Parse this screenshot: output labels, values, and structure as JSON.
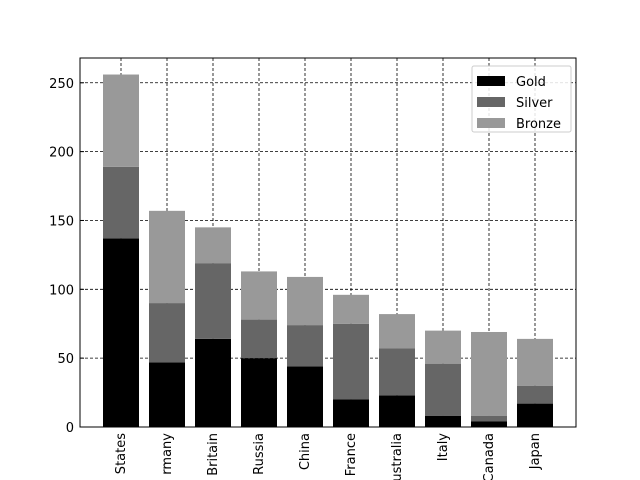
{
  "chart_data": {
    "type": "bar",
    "stacked": true,
    "title": "",
    "xlabel": "",
    "ylabel": "",
    "categories": [
      "States",
      "rmany",
      "Britain",
      "Russia",
      "China",
      "France",
      "ustralia",
      "Italy",
      "Canada",
      "Japan"
    ],
    "series": [
      {
        "name": "Gold",
        "color": "#000000",
        "values": [
          137,
          47,
          64,
          50,
          44,
          20,
          23,
          8,
          4,
          17
        ]
      },
      {
        "name": "Silver",
        "color": "#666666",
        "values": [
          52,
          43,
          55,
          28,
          30,
          55,
          34,
          38,
          4,
          13
        ]
      },
      {
        "name": "Bronze",
        "color": "#999999",
        "values": [
          67,
          67,
          26,
          35,
          35,
          21,
          25,
          24,
          61,
          34
        ]
      }
    ],
    "ylim": [
      0,
      268
    ],
    "yticks": [
      0,
      50,
      100,
      150,
      200,
      250
    ],
    "grid": true,
    "legend_position": "top-right"
  }
}
